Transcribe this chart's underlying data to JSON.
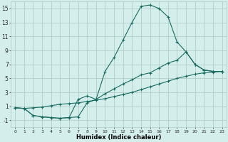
{
  "xlabel": "Humidex (Indice chaleur)",
  "bg_color": "#d4eeec",
  "grid_color": "#aac8c4",
  "line_color": "#1a6b60",
  "xlim": [
    -0.5,
    23.5
  ],
  "ylim": [
    -2,
    16
  ],
  "xticks": [
    0,
    1,
    2,
    3,
    4,
    5,
    6,
    7,
    8,
    9,
    10,
    11,
    12,
    13,
    14,
    15,
    16,
    17,
    18,
    19,
    20,
    21,
    22,
    23
  ],
  "yticks": [
    -1,
    1,
    3,
    5,
    7,
    9,
    11,
    13,
    15
  ],
  "line1_x": [
    0,
    1,
    2,
    3,
    4,
    5,
    6,
    7,
    8,
    9,
    10,
    11,
    12,
    13,
    14,
    15,
    16,
    17,
    18,
    19,
    20,
    21,
    22,
    23
  ],
  "line1_y": [
    0.8,
    0.7,
    -0.3,
    -0.5,
    -0.6,
    -0.7,
    -0.6,
    -0.5,
    1.5,
    2.0,
    6.0,
    8.0,
    10.5,
    13.0,
    15.3,
    15.5,
    15.0,
    13.8,
    10.2,
    8.8,
    7.0,
    6.2,
    6.0,
    6.0
  ],
  "line2_x": [
    0,
    1,
    2,
    3,
    4,
    5,
    6,
    7,
    8,
    9,
    10,
    11,
    12,
    13,
    14,
    15,
    16,
    17,
    18,
    19,
    20,
    21,
    22,
    23
  ],
  "line2_y": [
    0.8,
    0.7,
    -0.3,
    -0.5,
    -0.6,
    -0.7,
    -0.6,
    2.0,
    2.5,
    2.0,
    2.8,
    3.5,
    4.2,
    4.8,
    5.5,
    5.8,
    6.5,
    7.2,
    7.6,
    8.8,
    7.0,
    6.2,
    6.0,
    6.0
  ],
  "line3_x": [
    0,
    1,
    2,
    3,
    4,
    5,
    6,
    7,
    8,
    9,
    10,
    11,
    12,
    13,
    14,
    15,
    16,
    17,
    18,
    19,
    20,
    21,
    22,
    23
  ],
  "line3_y": [
    0.8,
    0.7,
    0.8,
    0.9,
    1.1,
    1.3,
    1.4,
    1.5,
    1.7,
    1.9,
    2.1,
    2.4,
    2.7,
    3.0,
    3.4,
    3.8,
    4.2,
    4.6,
    5.0,
    5.3,
    5.6,
    5.8,
    5.9,
    6.0
  ]
}
